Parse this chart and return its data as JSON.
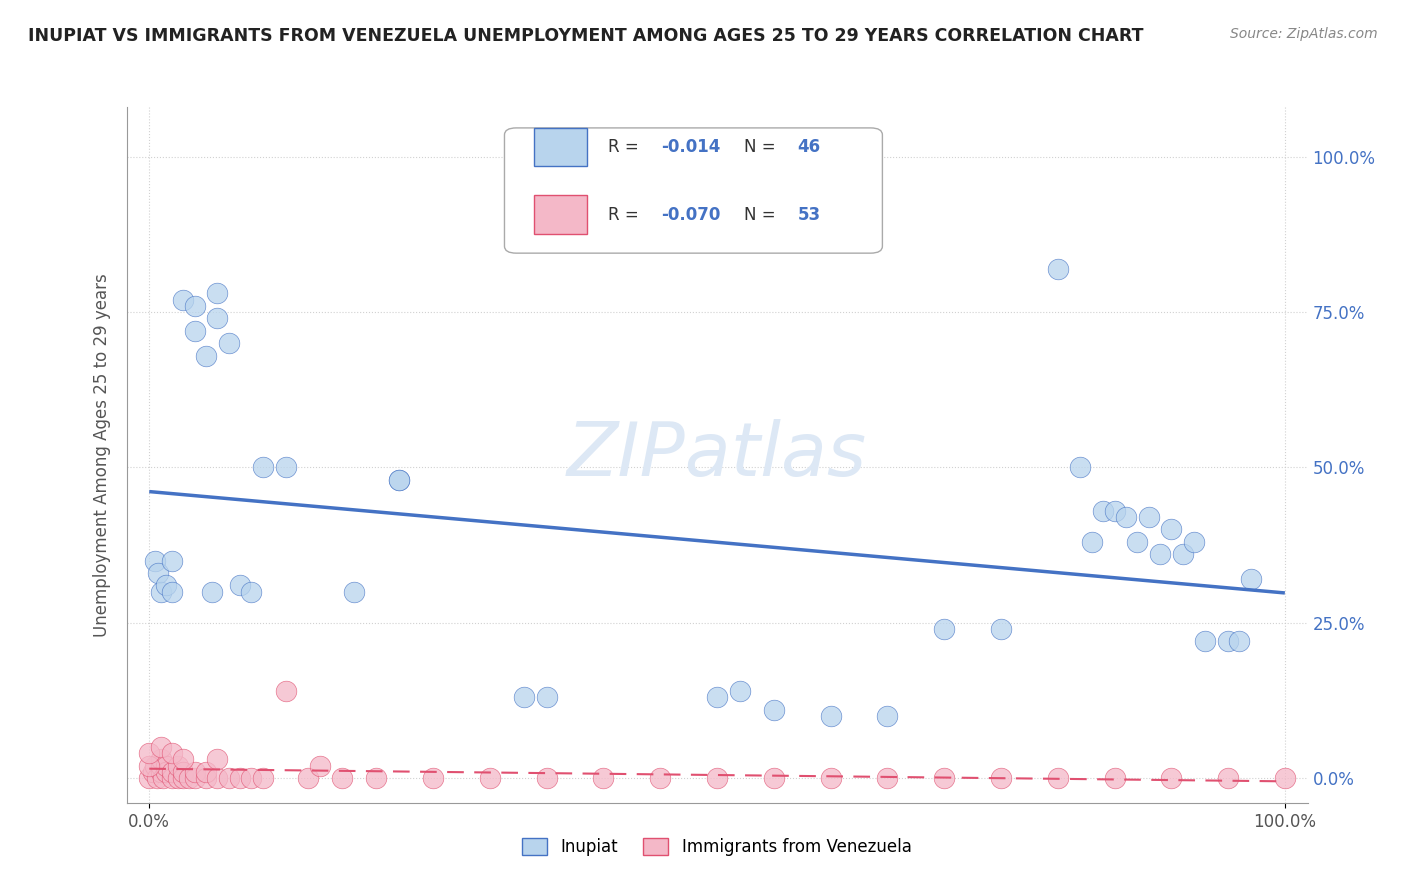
{
  "title": "INUPIAT VS IMMIGRANTS FROM VENEZUELA UNEMPLOYMENT AMONG AGES 25 TO 29 YEARS CORRELATION CHART",
  "source": "Source: ZipAtlas.com",
  "ylabel": "Unemployment Among Ages 25 to 29 years",
  "xlim": [
    -0.02,
    1.02
  ],
  "ylim": [
    -0.04,
    1.08
  ],
  "xtick_positions": [
    0.0,
    1.0
  ],
  "xtick_labels": [
    "0.0%",
    "100.0%"
  ],
  "ytick_positions": [
    0.0,
    0.25,
    0.5,
    0.75,
    1.0
  ],
  "ytick_labels": [
    "0.0%",
    "25.0%",
    "50.0%",
    "75.0%",
    "100.0%"
  ],
  "color_inupiat_fill": "#b8d4ed",
  "color_inupiat_edge": "#4472c4",
  "color_venezuela_fill": "#f4b8c8",
  "color_venezuela_edge": "#e05070",
  "color_line_inupiat": "#4472c4",
  "color_line_venezuela": "#e05070",
  "background_color": "#ffffff",
  "grid_color": "#cccccc",
  "watermark_color": "#dde8f5",
  "inupiat_x": [
    0.005,
    0.008,
    0.01,
    0.015,
    0.02,
    0.02,
    0.03,
    0.04,
    0.04,
    0.05,
    0.055,
    0.06,
    0.06,
    0.07,
    0.08,
    0.09,
    0.1,
    0.12,
    0.18,
    0.22,
    0.22,
    0.33,
    0.35,
    0.5,
    0.52,
    0.55,
    0.6,
    0.65,
    0.7,
    0.75,
    0.8,
    0.82,
    0.83,
    0.84,
    0.85,
    0.86,
    0.87,
    0.88,
    0.89,
    0.9,
    0.91,
    0.92,
    0.93,
    0.95,
    0.96,
    0.97
  ],
  "inupiat_y": [
    0.35,
    0.33,
    0.3,
    0.31,
    0.35,
    0.3,
    0.77,
    0.76,
    0.72,
    0.68,
    0.3,
    0.78,
    0.74,
    0.7,
    0.31,
    0.3,
    0.5,
    0.5,
    0.3,
    0.48,
    0.48,
    0.13,
    0.13,
    0.13,
    0.14,
    0.11,
    0.1,
    0.1,
    0.24,
    0.24,
    0.82,
    0.5,
    0.38,
    0.43,
    0.43,
    0.42,
    0.38,
    0.42,
    0.36,
    0.4,
    0.36,
    0.38,
    0.22,
    0.22,
    0.22,
    0.32
  ],
  "venezuela_x": [
    0.0,
    0.003,
    0.005,
    0.007,
    0.01,
    0.01,
    0.01,
    0.012,
    0.015,
    0.015,
    0.02,
    0.02,
    0.025,
    0.025,
    0.03,
    0.03,
    0.035,
    0.04,
    0.04,
    0.05,
    0.05,
    0.06,
    0.07,
    0.08,
    0.09,
    0.1,
    0.12,
    0.14,
    0.17,
    0.2,
    0.25,
    0.3,
    0.35,
    0.4,
    0.45,
    0.5,
    0.55,
    0.6,
    0.65,
    0.7,
    0.75,
    0.8,
    0.85,
    0.9,
    0.95,
    1.0,
    0.0,
    0.0,
    0.01,
    0.02,
    0.03,
    0.06,
    0.15
  ],
  "venezuela_y": [
    0.0,
    0.01,
    0.02,
    0.0,
    0.01,
    0.02,
    0.03,
    0.0,
    0.01,
    0.02,
    0.0,
    0.01,
    0.0,
    0.02,
    0.0,
    0.01,
    0.0,
    0.0,
    0.01,
    0.0,
    0.01,
    0.0,
    0.0,
    0.0,
    0.0,
    0.0,
    0.14,
    0.0,
    0.0,
    0.0,
    0.0,
    0.0,
    0.0,
    0.0,
    0.0,
    0.0,
    0.0,
    0.0,
    0.0,
    0.0,
    0.0,
    0.0,
    0.0,
    0.0,
    0.0,
    0.0,
    0.02,
    0.04,
    0.05,
    0.04,
    0.03,
    0.03,
    0.02
  ]
}
